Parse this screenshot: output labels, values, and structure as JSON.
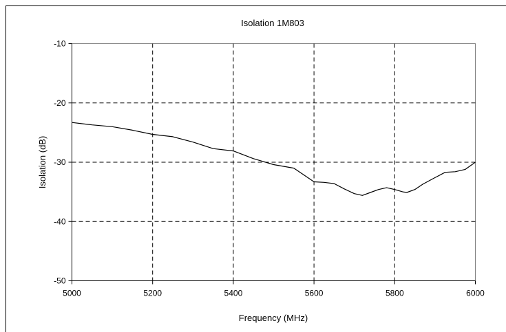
{
  "chart_data": {
    "type": "line",
    "title": "Isolation 1M803",
    "xlabel": "Frequency (MHz)",
    "ylabel": "Isolation (dB)",
    "xlim": [
      5000,
      6000
    ],
    "ylim": [
      -50,
      -10
    ],
    "xticks": [
      5000,
      5200,
      5400,
      5600,
      5800,
      6000
    ],
    "yticks": [
      -10,
      -20,
      -30,
      -40,
      -50
    ],
    "xtick_labels": [
      "5000",
      "5200",
      "5400",
      "5600",
      "5800",
      "6000"
    ],
    "ytick_labels": [
      "-10",
      "-20",
      "-30",
      "-40",
      "-50"
    ],
    "grid": "dashed",
    "legend": "none",
    "line_color": "#000000",
    "series": [
      {
        "x": [
          5000,
          5050,
          5100,
          5150,
          5200,
          5250,
          5300,
          5350,
          5400,
          5450,
          5500,
          5550,
          5600,
          5625,
          5650,
          5675,
          5700,
          5720,
          5740,
          5760,
          5780,
          5800,
          5820,
          5830,
          5850,
          5870,
          5900,
          5925,
          5950,
          5975,
          6000
        ],
        "y": [
          -23.3,
          -23.7,
          -24.0,
          -24.6,
          -25.3,
          -25.7,
          -26.6,
          -27.7,
          -28.1,
          -29.4,
          -30.4,
          -31.0,
          -33.3,
          -33.4,
          -33.6,
          -34.5,
          -35.3,
          -35.6,
          -35.1,
          -34.6,
          -34.3,
          -34.6,
          -35.0,
          -35.1,
          -34.6,
          -33.7,
          -32.6,
          -31.7,
          -31.6,
          -31.2,
          -30.0
        ]
      }
    ]
  }
}
